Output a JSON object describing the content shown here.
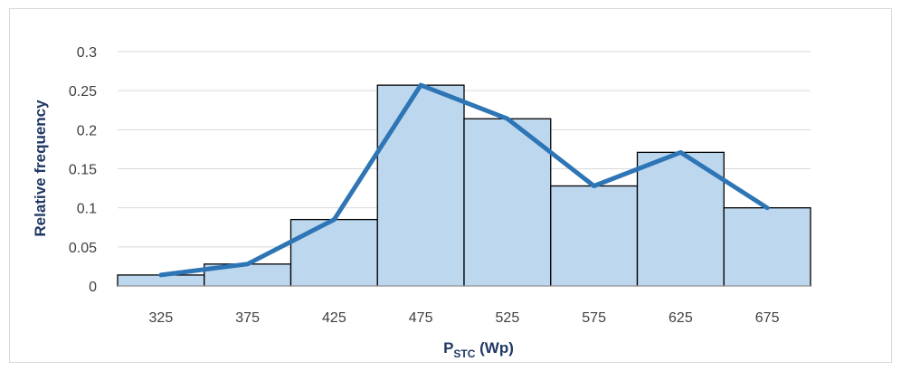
{
  "chart_data": {
    "type": "bar",
    "categories": [
      "325",
      "375",
      "425",
      "475",
      "525",
      "575",
      "625",
      "675"
    ],
    "series": [
      {
        "type": "bar",
        "values": [
          0.014,
          0.028,
          0.085,
          0.257,
          0.214,
          0.128,
          0.171,
          0.1
        ]
      },
      {
        "type": "line",
        "values": [
          0.014,
          0.028,
          0.085,
          0.257,
          0.214,
          0.128,
          0.171,
          0.1
        ]
      }
    ],
    "ylabel": "Relative frequency",
    "xlabel": {
      "main": "P",
      "subscript": "STC",
      "suffix": " (Wp)"
    },
    "yticks": [
      "0",
      "0.05",
      "0.1",
      "0.15",
      "0.2",
      "0.25",
      "0.3"
    ],
    "ylim": [
      0,
      0.3
    ],
    "grid": true,
    "colors": {
      "bar_fill": "#bdd7ee",
      "bar_stroke": "#000000",
      "line": "#2e75b6",
      "grid": "#d9d9d9",
      "axis": "#bfbfbf"
    }
  }
}
